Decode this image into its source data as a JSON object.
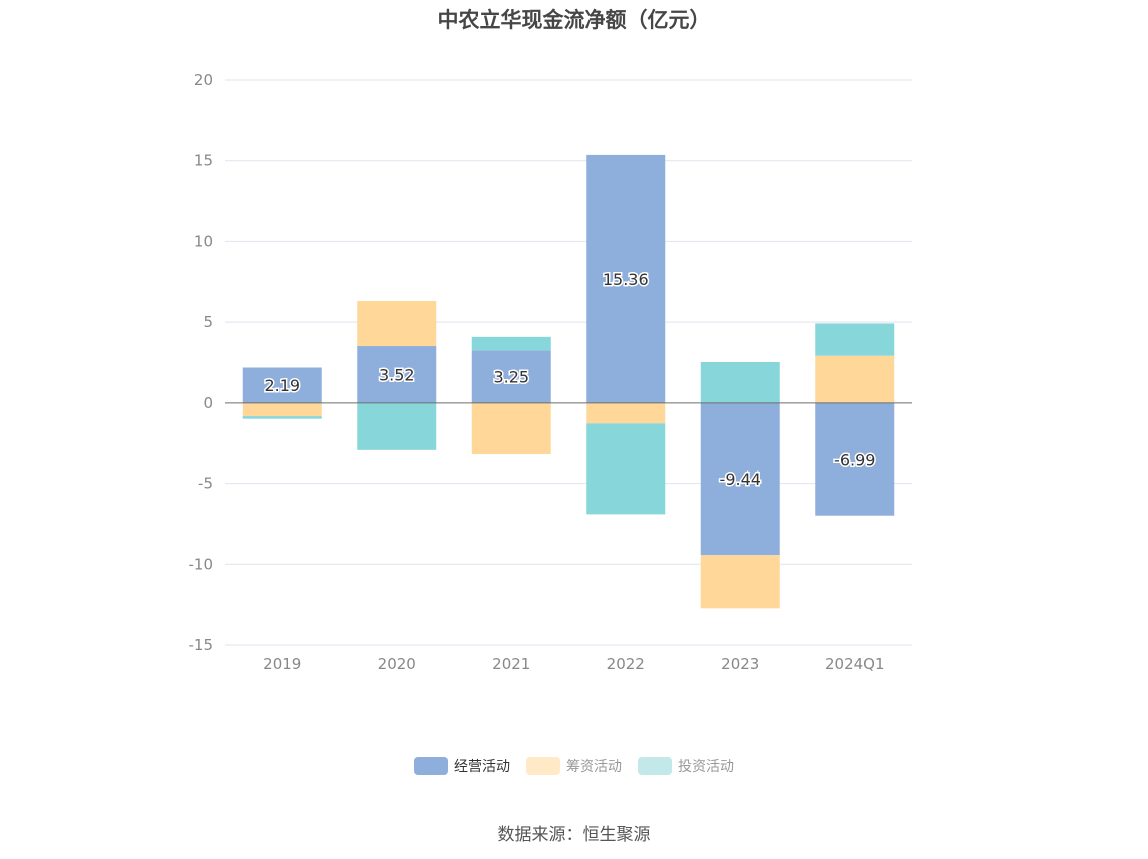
{
  "chart_data": {
    "type": "bar",
    "stacked": true,
    "title": "中农立华现金流净额（亿元）",
    "categories": [
      "2019",
      "2020",
      "2021",
      "2022",
      "2023",
      "2024Q1"
    ],
    "ylim": [
      -15,
      20
    ],
    "yticks": [
      20,
      15,
      10,
      5,
      0,
      -5,
      -10,
      -15
    ],
    "grid": true,
    "legend_position": "bottom",
    "series": [
      {
        "name": "经营活动",
        "color": "#8eaedb",
        "values": [
          2.19,
          3.52,
          3.25,
          15.36,
          -9.44,
          -6.99
        ],
        "labels": [
          "2.19",
          "3.52",
          "3.25",
          "15.36",
          "-9.44",
          "-6.99"
        ]
      },
      {
        "name": "筹资活动",
        "color": "#ffd899",
        "values": [
          -0.82,
          2.79,
          -3.17,
          -1.27,
          -3.29,
          2.92
        ]
      },
      {
        "name": "投资活动",
        "color": "#87d6d9",
        "values": [
          -0.16,
          -2.91,
          0.84,
          -5.64,
          2.53,
          2.0
        ]
      }
    ]
  },
  "legend": {
    "items": [
      {
        "label": "经营活动",
        "color": "#8eaedb",
        "active": true
      },
      {
        "label": "筹资活动",
        "color": "#ffe9c6",
        "active": false
      },
      {
        "label": "投资活动",
        "color": "#c2e8ea",
        "active": false
      }
    ]
  },
  "source": "数据来源：恒生聚源"
}
